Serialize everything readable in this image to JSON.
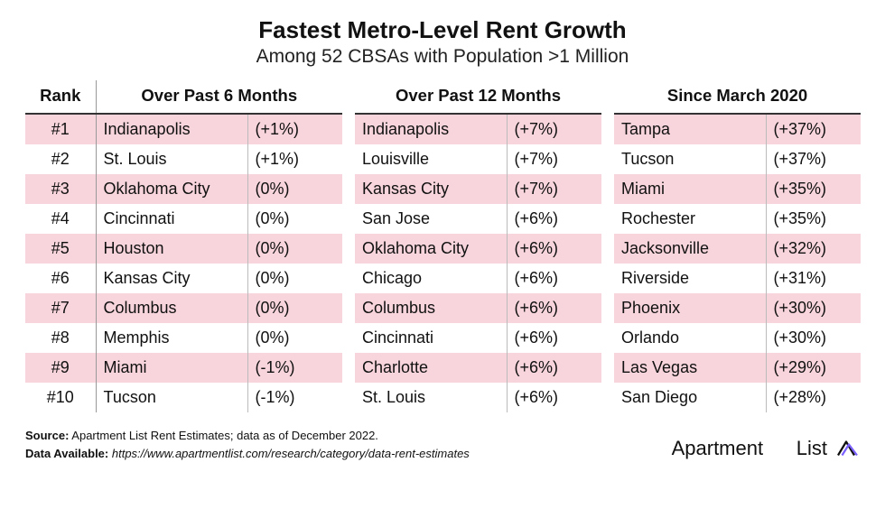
{
  "title": "Fastest Metro-Level Rent Growth",
  "subtitle": "Among 52 CBSAs with Population >1 Million",
  "headers": {
    "rank": "Rank",
    "g1": "Over Past 6 Months",
    "g2": "Over Past 12 Months",
    "g3": "Since March 2020"
  },
  "rows": [
    {
      "rank": "#1",
      "g1_city": "Indianapolis",
      "g1_pct": "(+1%)",
      "g2_city": "Indianapolis",
      "g2_pct": "(+7%)",
      "g3_city": "Tampa",
      "g3_pct": "(+37%)"
    },
    {
      "rank": "#2",
      "g1_city": "St. Louis",
      "g1_pct": "(+1%)",
      "g2_city": "Louisville",
      "g2_pct": "(+7%)",
      "g3_city": "Tucson",
      "g3_pct": "(+37%)"
    },
    {
      "rank": "#3",
      "g1_city": "Oklahoma City",
      "g1_pct": "(0%)",
      "g2_city": "Kansas City",
      "g2_pct": "(+7%)",
      "g3_city": "Miami",
      "g3_pct": "(+35%)"
    },
    {
      "rank": "#4",
      "g1_city": "Cincinnati",
      "g1_pct": "(0%)",
      "g2_city": "San Jose",
      "g2_pct": "(+6%)",
      "g3_city": "Rochester",
      "g3_pct": "(+35%)"
    },
    {
      "rank": "#5",
      "g1_city": "Houston",
      "g1_pct": "(0%)",
      "g2_city": "Oklahoma City",
      "g2_pct": "(+6%)",
      "g3_city": "Jacksonville",
      "g3_pct": "(+32%)"
    },
    {
      "rank": "#6",
      "g1_city": "Kansas City",
      "g1_pct": "(0%)",
      "g2_city": "Chicago",
      "g2_pct": "(+6%)",
      "g3_city": "Riverside",
      "g3_pct": "(+31%)"
    },
    {
      "rank": "#7",
      "g1_city": "Columbus",
      "g1_pct": "(0%)",
      "g2_city": "Columbus",
      "g2_pct": "(+6%)",
      "g3_city": "Phoenix",
      "g3_pct": "(+30%)"
    },
    {
      "rank": "#8",
      "g1_city": "Memphis",
      "g1_pct": "(0%)",
      "g2_city": "Cincinnati",
      "g2_pct": "(+6%)",
      "g3_city": "Orlando",
      "g3_pct": "(+30%)"
    },
    {
      "rank": "#9",
      "g1_city": "Miami",
      "g1_pct": "(-1%)",
      "g2_city": "Charlotte",
      "g2_pct": "(+6%)",
      "g3_city": "Las Vegas",
      "g3_pct": "(+29%)"
    },
    {
      "rank": "#10",
      "g1_city": "Tucson",
      "g1_pct": "(-1%)",
      "g2_city": "St. Louis",
      "g2_pct": "(+6%)",
      "g3_city": "San Diego",
      "g3_pct": "(+28%)"
    }
  ],
  "footer": {
    "source_label": "Source:",
    "source_text": " Apartment List Rent Estimates; data as of December 2022.",
    "data_label": "Data Available:",
    "data_url": "  https://www.apartmentlist.com/research/category/data-rent-estimates",
    "brand": "Apartment      List"
  },
  "style": {
    "stripe_color": "#f8d5dc",
    "background": "#ffffff",
    "text_color": "#111111",
    "header_rule_color": "#333333",
    "cell_rule_color": "#999999",
    "title_fontsize": 26,
    "subtitle_fontsize": 21,
    "header_fontsize": 18.5,
    "cell_fontsize": 18,
    "footer_fontsize": 13,
    "brand_purple": "#7b61ff"
  }
}
